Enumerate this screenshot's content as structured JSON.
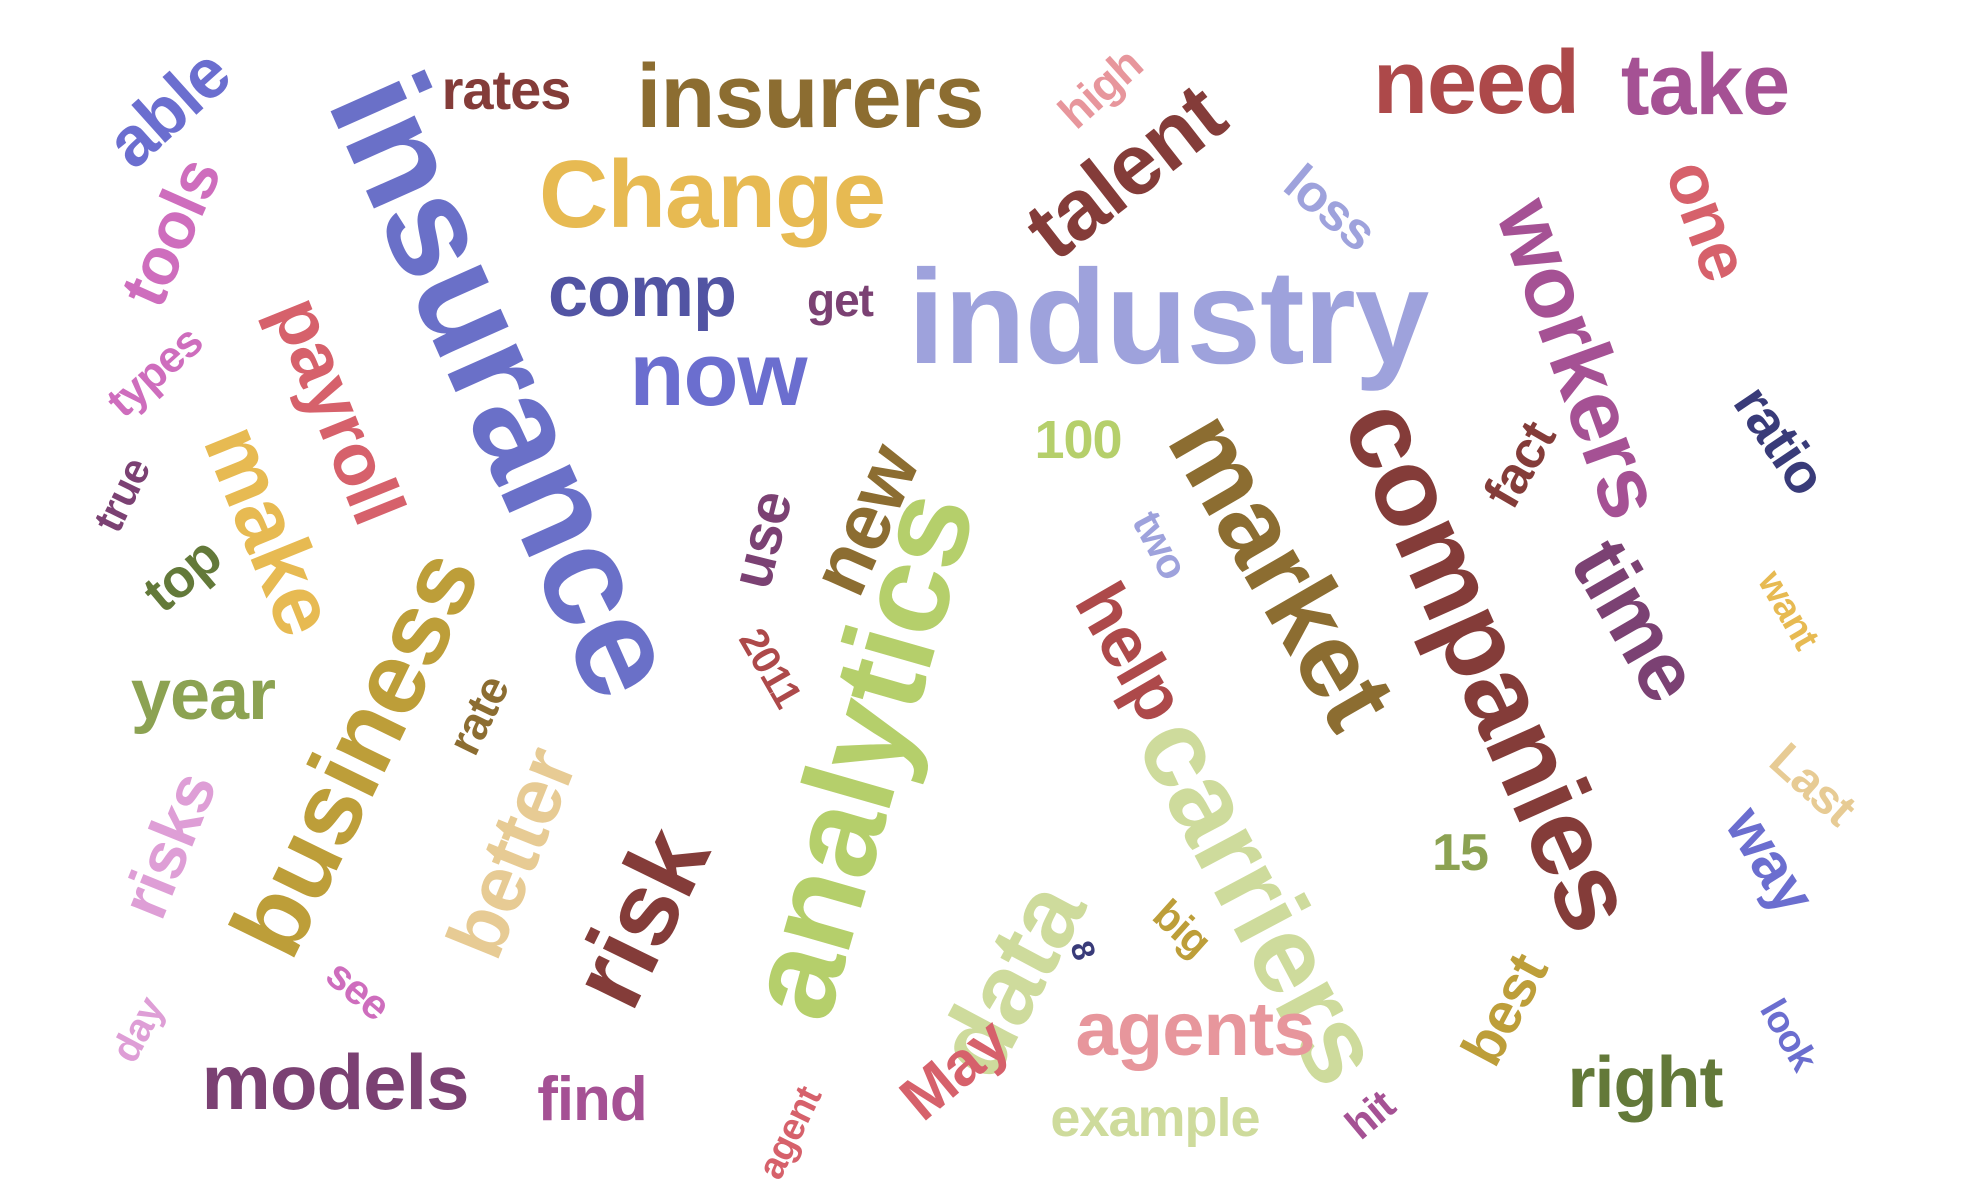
{
  "words": [
    {
      "text": "insurance",
      "color": "#6a70c8"
    },
    {
      "text": "industry",
      "color": "#9ea2dc"
    },
    {
      "text": "analytics",
      "color": "#b5cf6b"
    },
    {
      "text": "companies",
      "color": "#843c39"
    },
    {
      "text": "carriers",
      "color": "#cedb9c"
    },
    {
      "text": "market",
      "color": "#8c6d31"
    },
    {
      "text": "business",
      "color": "#bd9e39"
    },
    {
      "text": "risk",
      "color": "#843c39"
    },
    {
      "text": "data",
      "color": "#cedb9c"
    },
    {
      "text": "Change",
      "color": "#e7ba52"
    },
    {
      "text": "insurers",
      "color": "#8c6d31"
    },
    {
      "text": "workers",
      "color": "#a55194"
    },
    {
      "text": "talent",
      "color": "#843c39"
    },
    {
      "text": "now",
      "color": "#6b6ecf"
    },
    {
      "text": "need",
      "color": "#ad494a"
    },
    {
      "text": "take",
      "color": "#a55194"
    },
    {
      "text": "make",
      "color": "#e7ba52"
    },
    {
      "text": "better",
      "color": "#e7cb94"
    },
    {
      "text": "time",
      "color": "#7b4173"
    },
    {
      "text": "new",
      "color": "#8c6d31"
    },
    {
      "text": "payroll",
      "color": "#d6616b"
    },
    {
      "text": "models",
      "color": "#7b4173"
    },
    {
      "text": "agents",
      "color": "#e7969c"
    },
    {
      "text": "help",
      "color": "#ad494a"
    },
    {
      "text": "comp",
      "color": "#5254a3"
    },
    {
      "text": "year",
      "color": "#8ca252"
    },
    {
      "text": "tools",
      "color": "#ce6dbd"
    },
    {
      "text": "able",
      "color": "#6b6ecf"
    },
    {
      "text": "one",
      "color": "#d6616b"
    },
    {
      "text": "right",
      "color": "#637939"
    },
    {
      "text": "rates",
      "color": "#843c39"
    },
    {
      "text": "way",
      "color": "#6b6ecf"
    },
    {
      "text": "risks",
      "color": "#de9ed6"
    },
    {
      "text": "ratio",
      "color": "#393b79"
    },
    {
      "text": "May",
      "color": "#d6616b"
    },
    {
      "text": "find",
      "color": "#a55194"
    },
    {
      "text": "example",
      "color": "#cedb9c"
    },
    {
      "text": "use",
      "color": "#7b4173"
    },
    {
      "text": "best",
      "color": "#bd9e39"
    },
    {
      "text": "loss",
      "color": "#9ea2dc"
    },
    {
      "text": "top",
      "color": "#637939"
    },
    {
      "text": "fact",
      "color": "#843c39"
    },
    {
      "text": "Last",
      "color": "#e7cb94"
    },
    {
      "text": "high",
      "color": "#e7969c"
    },
    {
      "text": "100",
      "color": "#b5cf6b"
    },
    {
      "text": "15",
      "color": "#8ca252"
    },
    {
      "text": "rate",
      "color": "#8c6d31"
    },
    {
      "text": "get",
      "color": "#7b4173"
    },
    {
      "text": "types",
      "color": "#ce6dbd"
    },
    {
      "text": "true",
      "color": "#7b4173"
    },
    {
      "text": "see",
      "color": "#ce6dbd"
    },
    {
      "text": "day",
      "color": "#de9ed6"
    },
    {
      "text": "two",
      "color": "#9ea2dc"
    },
    {
      "text": "2011",
      "color": "#ad494a"
    },
    {
      "text": "big",
      "color": "#bd9e39"
    },
    {
      "text": "want",
      "color": "#e7ba52"
    },
    {
      "text": "look",
      "color": "#6b6ecf"
    },
    {
      "text": "hit",
      "color": "#a55194"
    },
    {
      "text": "agent",
      "color": "#d6616b"
    },
    {
      "text": "8",
      "color": "#393b79"
    }
  ]
}
